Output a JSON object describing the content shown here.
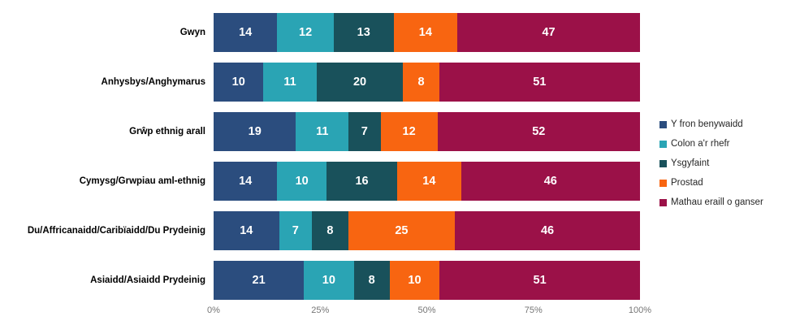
{
  "chart_data": {
    "type": "bar",
    "orientation": "horizontal",
    "stacked": "percent",
    "title": "",
    "xlabel": "",
    "ylabel": "",
    "grid": false,
    "legend_position": "right",
    "categories": [
      "Gwyn",
      "Anhysbys/Anghymarus",
      "Grŵp ethnig arall",
      "Cymysg/Grwpiau aml-ethnig",
      "Du/Affricanaidd/Caribïaidd/Du Prydeinig",
      "Asiaidd/Asiaidd Prydeinig"
    ],
    "series": [
      {
        "name": "Y fron benywaidd",
        "color": "#2B4D7E",
        "values": [
          14,
          10,
          19,
          14,
          14,
          21
        ]
      },
      {
        "name": "Colon a'r rhefr",
        "color": "#2AA4B4",
        "values": [
          12,
          11,
          11,
          10,
          7,
          10
        ]
      },
      {
        "name": "Ysgyfaint",
        "color": "#19515B",
        "values": [
          13,
          20,
          7,
          16,
          8,
          8
        ]
      },
      {
        "name": "Prostad",
        "color": "#F86511",
        "values": [
          14,
          8,
          12,
          14,
          25,
          10
        ]
      },
      {
        "name": "Mathau eraill o ganser",
        "color": "#9B1148",
        "values": [
          47,
          51,
          52,
          46,
          46,
          51
        ]
      }
    ],
    "x_axis": {
      "range": [
        0,
        100
      ],
      "tick_labels": [
        "0%",
        "25%",
        "50%",
        "75%",
        "100%"
      ],
      "tick_positions": [
        0,
        25,
        50,
        75,
        100
      ]
    },
    "value_label_color": "#ffffff"
  }
}
